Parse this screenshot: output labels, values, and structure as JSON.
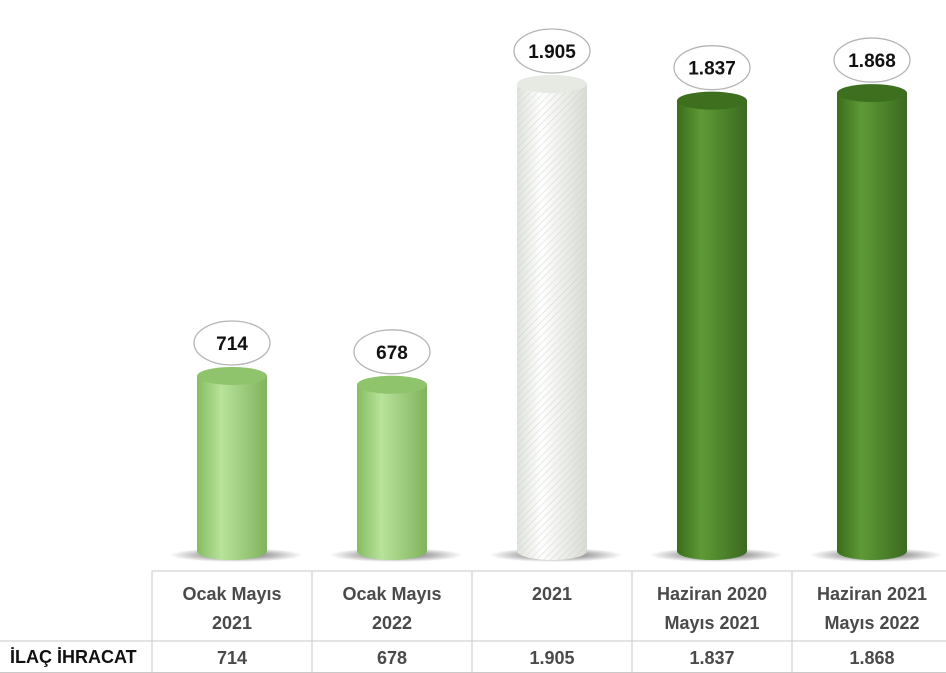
{
  "chart_data": {
    "type": "bar",
    "categories": [
      "Ocak Mayıs 2021",
      "Ocak Mayıs 2022",
      "2021",
      "Haziran 2020 Mayıs 2021",
      "Haziran 2021 Mayıs 2022"
    ],
    "category_lines": [
      [
        "Ocak Mayıs",
        "2021"
      ],
      [
        "Ocak Mayıs",
        "2022"
      ],
      [
        "2021",
        ""
      ],
      [
        "Haziran 2020",
        "Mayıs 2021"
      ],
      [
        "Haziran 2021",
        "Mayıs 2022"
      ]
    ],
    "series": [
      {
        "name": "İLAÇ İHRACAT",
        "values": [
          714,
          678,
          1905,
          1837,
          1868
        ]
      }
    ],
    "value_labels": [
      "714",
      "678",
      "1.905",
      "1.837",
      "1.868"
    ],
    "bar_colors": [
      "#a3d483",
      "#a3d483",
      "#f2f4f0",
      "#4f8a2a",
      "#4f8a2a"
    ],
    "bar_styles": [
      "light",
      "light",
      "hatched",
      "dark",
      "dark"
    ],
    "title": "",
    "xlabel": "",
    "ylabel": "",
    "ylim": [
      0,
      2000
    ],
    "grid": false,
    "legend": "none"
  },
  "table": {
    "row_header": "İLAÇ İHRACAT",
    "values": [
      "714",
      "678",
      "1.905",
      "1.837",
      "1.868"
    ]
  }
}
